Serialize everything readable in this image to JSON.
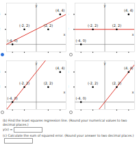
{
  "chart_data": [
    {
      "type": "scatter",
      "x": [
        -4,
        -2,
        2,
        4
      ],
      "values": [
        0,
        2,
        2,
        4
      ],
      "color": "#000000",
      "point_labels": [
        "(-4, 0)",
        "(-2, 2)",
        "(2, 2)",
        "(4, 4)"
      ],
      "line": {
        "x": [
          -5,
          5
        ],
        "values": [
          0,
          4
        ],
        "color": "#e0392f"
      },
      "x_label": "x",
      "y_label": "y",
      "xlim": [
        -5,
        5
      ],
      "ylim": [
        -1,
        5.5
      ],
      "xticks": [
        -4,
        -2,
        2,
        4
      ],
      "yticks": [
        2,
        4
      ]
    },
    {
      "type": "scatter",
      "x": [
        -4,
        -2,
        2,
        4
      ],
      "values": [
        0,
        2,
        2,
        4
      ],
      "color": "#000000",
      "point_labels": [
        "(-4, 0)",
        "(-2, 2)",
        "(2, 2)",
        "(4, 4)"
      ],
      "line": {
        "x": [
          -5,
          5
        ],
        "values": [
          2,
          2
        ],
        "color": "#e0392f"
      },
      "x_label": "x",
      "y_label": "y",
      "xlim": [
        -5,
        5
      ],
      "ylim": [
        -1,
        5.5
      ],
      "xticks": [
        -4,
        -2,
        2,
        4
      ],
      "yticks": [
        2,
        4
      ]
    },
    {
      "type": "scatter",
      "x": [
        -4,
        -2,
        2,
        4
      ],
      "values": [
        0,
        2,
        2,
        4
      ],
      "color": "#000000",
      "point_labels": [
        "(-4, 0)",
        "(-2, 2)",
        "(2, 2)",
        "(4, 4)"
      ],
      "line": {
        "x": [
          -5,
          5
        ],
        "values": [
          -1,
          9
        ],
        "color": "#e0392f"
      },
      "x_label": "x",
      "y_label": "y",
      "xlim": [
        -5,
        5
      ],
      "ylim": [
        -1,
        5.5
      ],
      "xticks": [
        -4,
        -2,
        2,
        4
      ],
      "yticks": [
        2,
        4
      ]
    },
    {
      "type": "scatter",
      "x": [
        -4,
        -2,
        2,
        4
      ],
      "values": [
        0,
        2,
        2,
        4
      ],
      "color": "#000000",
      "point_labels": [
        "(-4, 0)",
        "(-2, 2)",
        "(2, 2)",
        "(4, 4)"
      ],
      "line": {
        "x": [
          -5,
          5
        ],
        "values": [
          -5,
          5
        ],
        "color": "#e0392f"
      },
      "x_label": "x",
      "y_label": "y",
      "xlim": [
        -5,
        5
      ],
      "ylim": [
        -1,
        5.5
      ],
      "xticks": [
        -4,
        -2,
        2,
        4
      ],
      "yticks": [
        2,
        4
      ]
    }
  ],
  "selected_option": 0,
  "questions": [
    {
      "text": "(b) Find the least squares regression line. (Round your numerical values to two decimal places.)",
      "answer_label": "y(x) ="
    },
    {
      "text": "(c) Calculate the sum of squared error. (Round your answer to two decimal places.)",
      "answer_label": ""
    }
  ]
}
